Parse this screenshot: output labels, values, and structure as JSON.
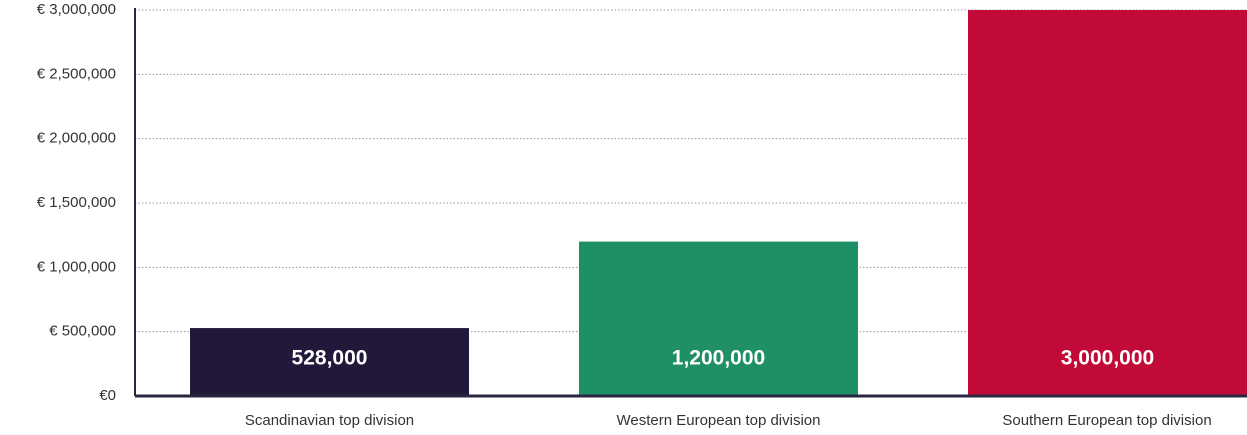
{
  "chart_data": {
    "type": "bar",
    "categories": [
      "Scandinavian top division",
      "Western European top division",
      "Southern European top division"
    ],
    "values": [
      528000,
      1200000,
      3000000
    ],
    "value_labels": [
      "528,000",
      "1,200,000",
      "3,000,000"
    ],
    "colors": [
      "#21183a",
      "#1f8f66",
      "#c10a38"
    ],
    "ylim": [
      0,
      3000000
    ],
    "yticks": [
      {
        "value": 0,
        "label": "€0"
      },
      {
        "value": 500000,
        "label": "€ 500,000"
      },
      {
        "value": 1000000,
        "label": "€ 1,000,000"
      },
      {
        "value": 1500000,
        "label": "€ 1,500,000"
      },
      {
        "value": 2000000,
        "label": "€ 2,000,000"
      },
      {
        "value": 2500000,
        "label": "€ 2,500,000"
      },
      {
        "value": 3000000,
        "label": "€ 3,000,000"
      }
    ],
    "grid": true
  }
}
